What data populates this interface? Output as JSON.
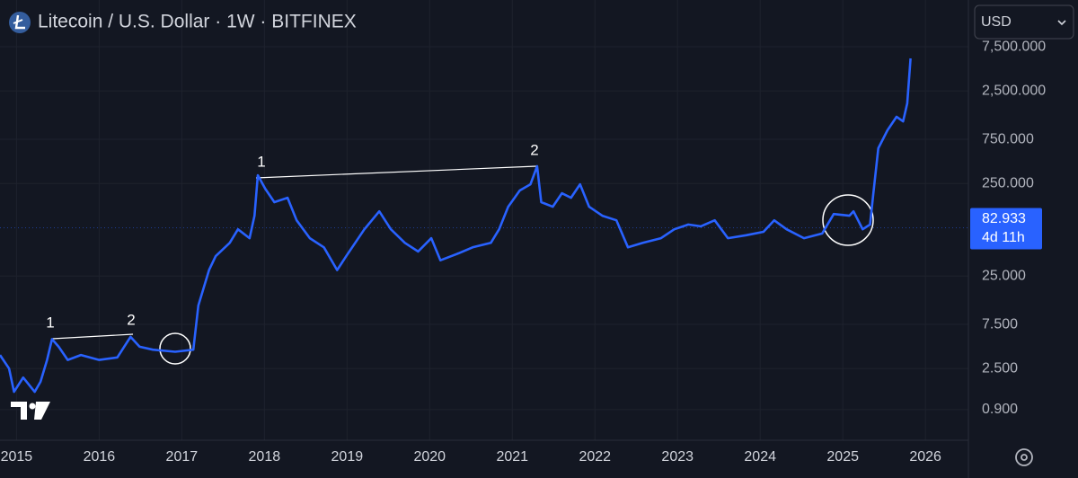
{
  "chart_data": {
    "type": "line",
    "title": "Litecoin / U.S. Dollar · 1W · BITFINEX",
    "currency": "USD",
    "log_y": true,
    "grid": true,
    "color": "#2962ff",
    "x": [
      2014.8,
      2014.91,
      2014.97,
      2015.08,
      2015.22,
      2015.29,
      2015.37,
      2015.43,
      2015.51,
      2015.62,
      2015.78,
      2016.0,
      2016.22,
      2016.38,
      2016.49,
      2016.65,
      2016.92,
      2017.14,
      2017.2,
      2017.33,
      2017.41,
      2017.58,
      2017.68,
      2017.82,
      2017.88,
      2017.92,
      2018.01,
      2018.12,
      2018.28,
      2018.39,
      2018.55,
      2018.72,
      2018.88,
      2018.99,
      2019.21,
      2019.39,
      2019.53,
      2019.7,
      2019.86,
      2020.02,
      2020.13,
      2020.35,
      2020.52,
      2020.74,
      2020.84,
      2020.95,
      2021.09,
      2021.22,
      2021.3,
      2021.35,
      2021.49,
      2021.6,
      2021.71,
      2021.82,
      2021.93,
      2022.09,
      2022.26,
      2022.4,
      2022.58,
      2022.8,
      2022.96,
      2023.13,
      2023.28,
      2023.45,
      2023.61,
      2023.83,
      2024.04,
      2024.17,
      2024.32,
      2024.53,
      2024.75,
      2024.89,
      2025.08,
      2025.13,
      2025.24,
      2025.33,
      2025.37,
      2025.43,
      2025.54,
      2025.65,
      2025.73,
      2025.78,
      2025.82
    ],
    "values": [
      3.5,
      2.5,
      1.4,
      2.0,
      1.4,
      1.8,
      3.1,
      5.2,
      4.3,
      3.1,
      3.5,
      3.1,
      3.3,
      5.5,
      4.3,
      4.0,
      3.8,
      4.0,
      12,
      29,
      41,
      57,
      80,
      64,
      112,
      307,
      219,
      157,
      175,
      100,
      64,
      51,
      29,
      41,
      80,
      125,
      80,
      57,
      46,
      64,
      37,
      44,
      51,
      57,
      80,
      140,
      210,
      245,
      384,
      157,
      140,
      196,
      175,
      245,
      140,
      112,
      100,
      51,
      57,
      64,
      80,
      90,
      86,
      100,
      64,
      69,
      75,
      100,
      80,
      64,
      72,
      117,
      112,
      125,
      80,
      90,
      196,
      600,
      938,
      1312,
      1172,
      1832,
      5610
    ],
    "xlim": [
      2014.8,
      2026.52
    ],
    "xticks": [
      2015,
      2016,
      2017,
      2018,
      2019,
      2020,
      2021,
      2022,
      2023,
      2024,
      2025,
      2026
    ],
    "ylim": [
      0.42,
      24000
    ],
    "yticks": [
      {
        "value": 0.9,
        "label": "0.900"
      },
      {
        "value": 2.5,
        "label": "2.500"
      },
      {
        "value": 7.5,
        "label": "7.500"
      },
      {
        "value": 25,
        "label": "25.000"
      },
      {
        "value": 250,
        "label": "250.000"
      },
      {
        "value": 750,
        "label": "750.000"
      },
      {
        "value": 2500,
        "label": "2,500.000"
      },
      {
        "value": 7500,
        "label": "7,500.000"
      }
    ],
    "last_price": 82.933,
    "countdown": "4d 11h",
    "annotations": [
      "1",
      "2",
      "1",
      "2"
    ]
  }
}
